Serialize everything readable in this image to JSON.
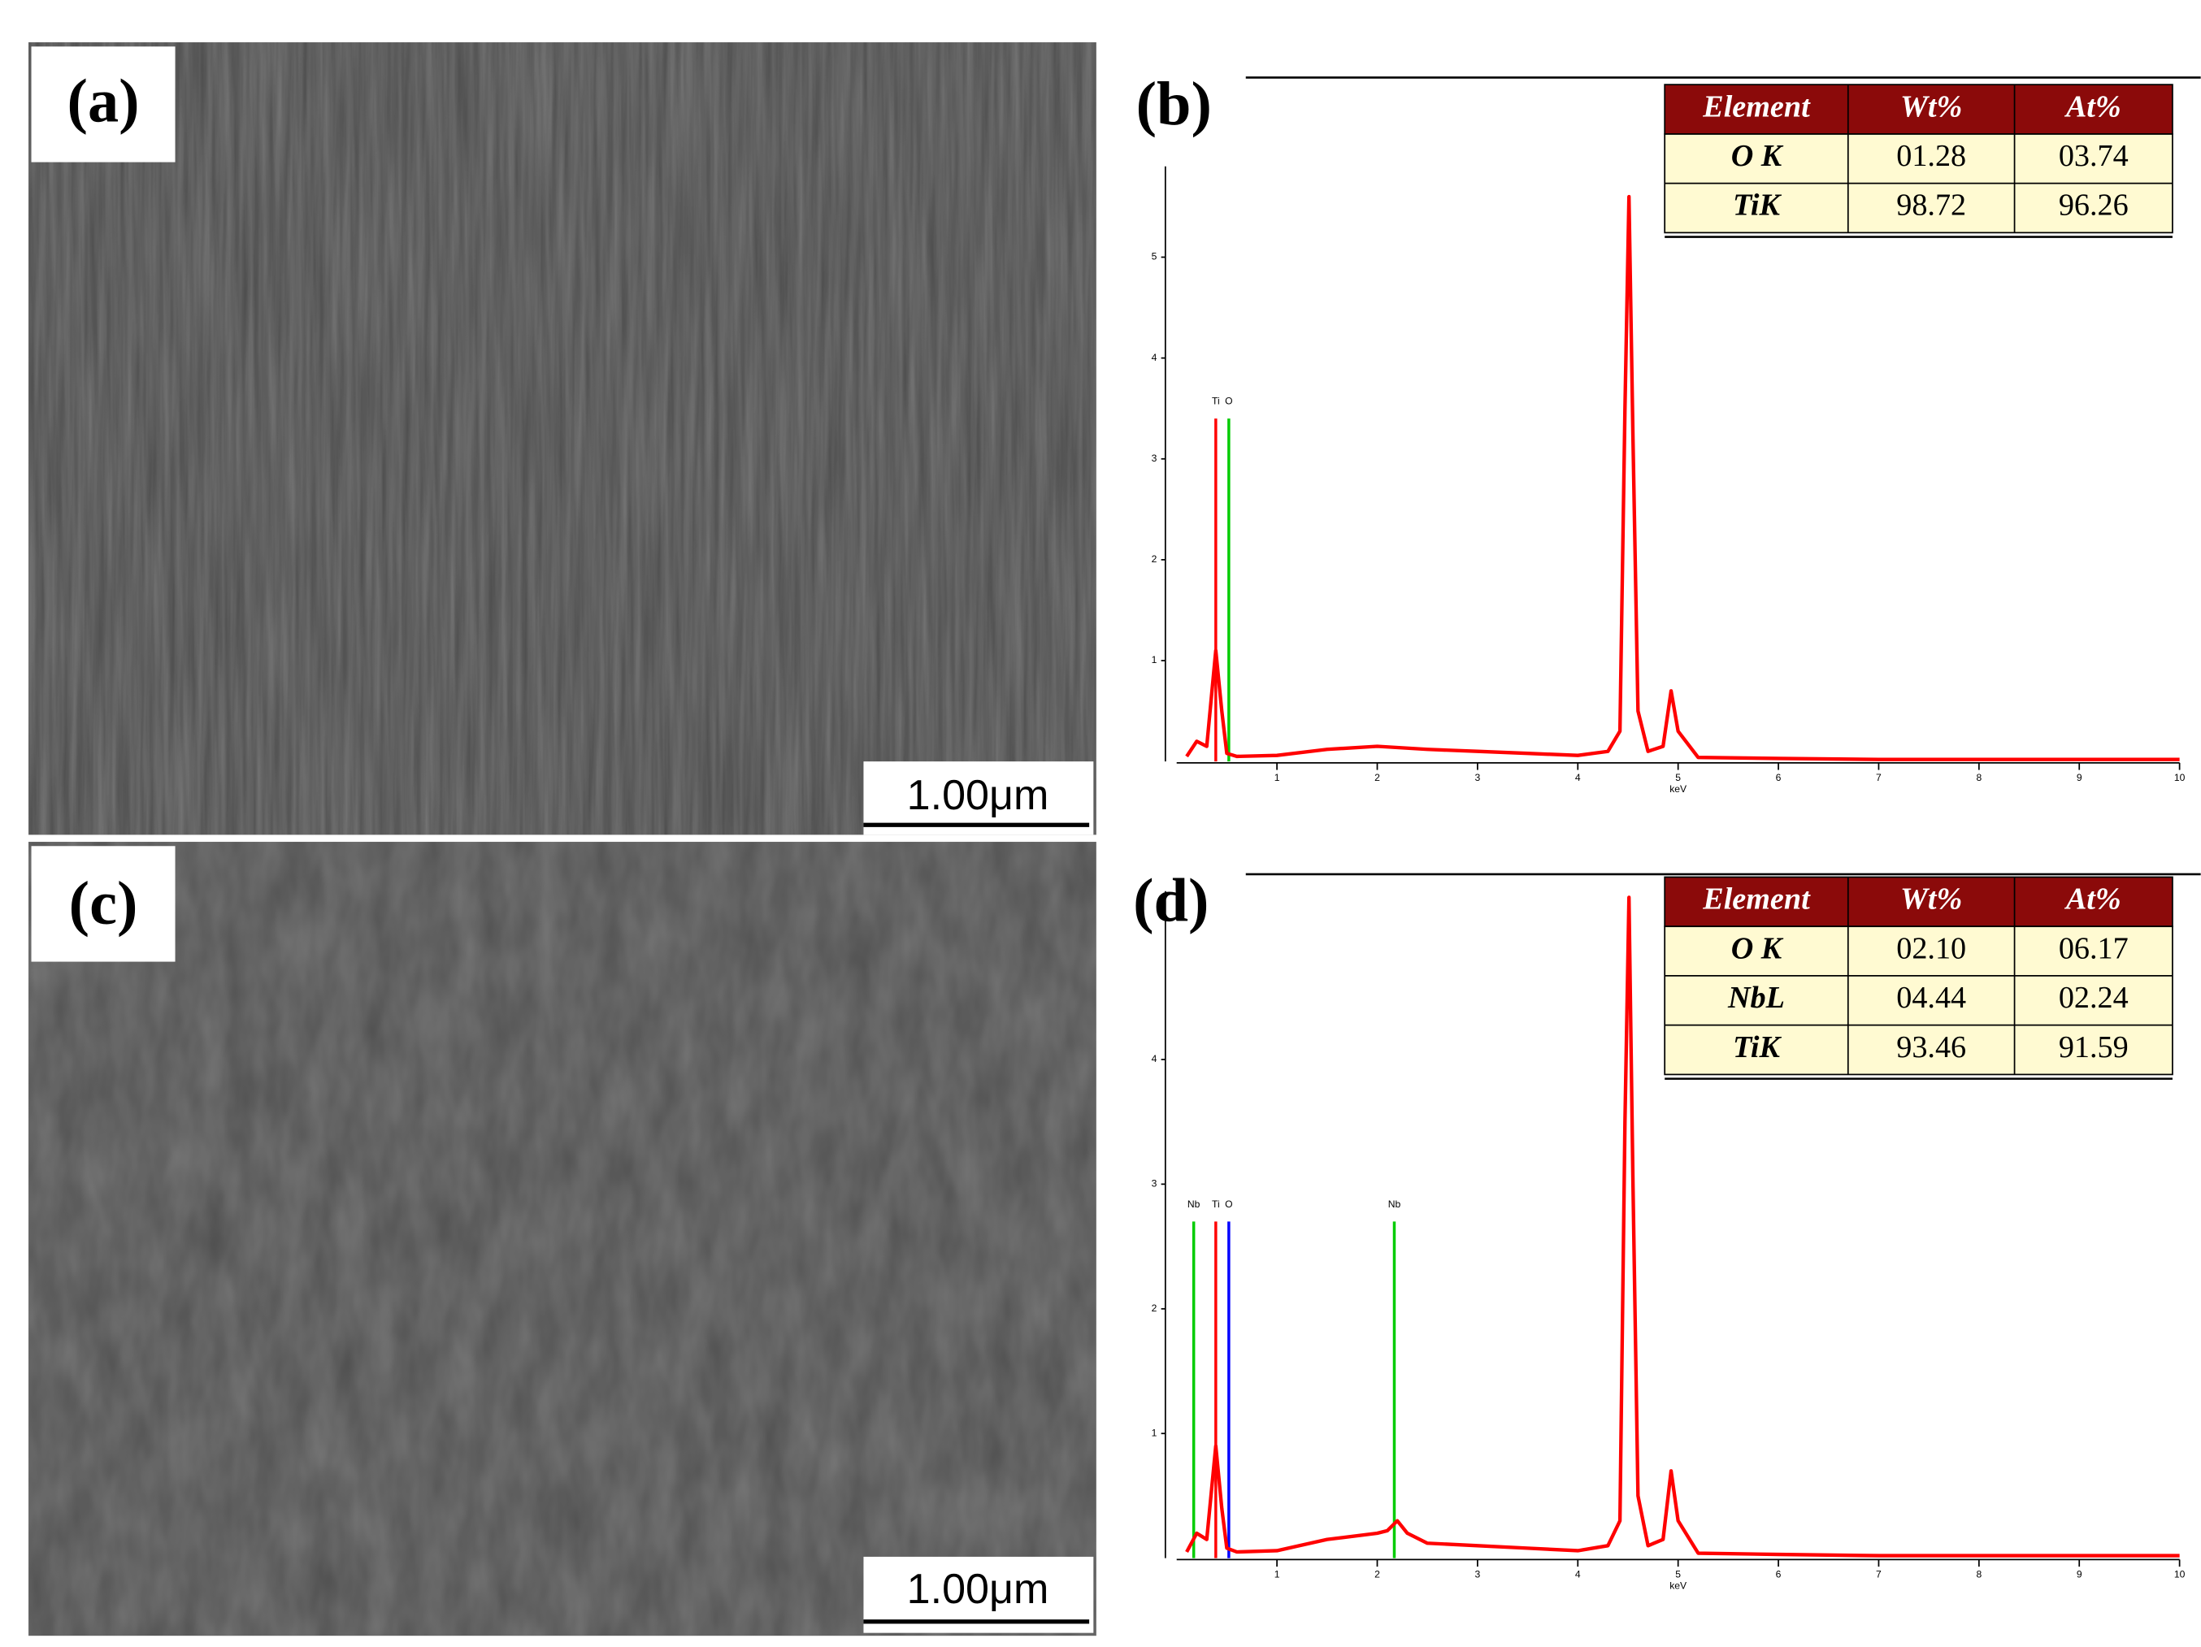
{
  "panels": [
    {
      "label": "(a)",
      "scale_bar": "1.00μm"
    },
    {
      "label": "(b)"
    },
    {
      "label": "(c)",
      "scale_bar": "1.00μm"
    },
    {
      "label": "(d)"
    }
  ],
  "tables": [
    {
      "header": [
        "Element",
        "Wt%",
        "At%"
      ],
      "rows": [
        [
          "O K",
          "01.28",
          "03.74"
        ],
        [
          "TiK",
          "98.72",
          "96.26"
        ]
      ]
    },
    {
      "header": [
        "Element",
        "Wt%",
        "At%"
      ],
      "rows": [
        [
          "O K",
          "02.10",
          "06.17"
        ],
        [
          "NbL",
          "04.44",
          "02.24"
        ],
        [
          "TiK",
          "93.46",
          "91.59"
        ]
      ]
    }
  ],
  "chart_data": [
    {
      "type": "line",
      "x_label": "keV",
      "x": [
        0.1,
        0.2,
        0.3,
        0.39,
        0.45,
        0.5,
        0.6,
        1,
        1.5,
        2,
        2.5,
        3,
        3.5,
        4,
        4.3,
        4.42,
        4.47,
        4.51,
        4.55,
        4.6,
        4.7,
        4.85,
        4.93,
        5.0,
        5.2,
        6,
        7,
        8,
        9,
        10
      ],
      "series": [
        {
          "color": "#ff0000",
          "values": [
            0.05,
            0.2,
            0.15,
            1.1,
            0.5,
            0.08,
            0.05,
            0.06,
            0.12,
            0.15,
            0.12,
            0.1,
            0.08,
            0.06,
            0.1,
            0.3,
            3.5,
            5.6,
            3.2,
            0.5,
            0.1,
            0.15,
            0.7,
            0.3,
            0.04,
            0.03,
            0.02,
            0.02,
            0.02,
            0.02
          ]
        }
      ],
      "markers": [
        {
          "label": "Ti",
          "x": 0.39,
          "height": 3.4,
          "color": "#ff0000"
        },
        {
          "label": "O",
          "x": 0.52,
          "height": 3.4,
          "color": "#00cc00"
        }
      ],
      "xlim": [
        0,
        10
      ],
      "xticks": [
        1,
        2,
        3,
        4,
        5,
        6,
        7,
        8,
        9,
        10
      ],
      "ylim": [
        0,
        5.9
      ],
      "yticks": [
        1,
        2,
        3,
        4,
        5
      ]
    },
    {
      "type": "line",
      "x_label": "keV",
      "x": [
        0.1,
        0.2,
        0.3,
        0.39,
        0.45,
        0.5,
        0.6,
        1,
        1.5,
        2,
        2.1,
        2.2,
        2.3,
        2.5,
        3,
        3.5,
        4,
        4.3,
        4.42,
        4.47,
        4.51,
        4.55,
        4.6,
        4.7,
        4.85,
        4.93,
        5.0,
        5.2,
        6,
        7,
        8,
        9,
        10
      ],
      "series": [
        {
          "color": "#ff0000",
          "values": [
            0.05,
            0.2,
            0.15,
            0.9,
            0.4,
            0.08,
            0.05,
            0.06,
            0.15,
            0.2,
            0.22,
            0.3,
            0.2,
            0.12,
            0.1,
            0.08,
            0.06,
            0.1,
            0.3,
            3.5,
            5.3,
            3.0,
            0.5,
            0.1,
            0.15,
            0.7,
            0.3,
            0.04,
            0.03,
            0.02,
            0.02,
            0.02,
            0.02
          ]
        }
      ],
      "markers": [
        {
          "label": "Nb",
          "x": 0.17,
          "height": 2.7,
          "color": "#00cc00"
        },
        {
          "label": "Ti",
          "x": 0.39,
          "height": 2.7,
          "color": "#ff0000"
        },
        {
          "label": "O",
          "x": 0.52,
          "height": 2.7,
          "color": "#0000ff"
        },
        {
          "label": "Nb",
          "x": 2.17,
          "height": 2.7,
          "color": "#00cc00"
        }
      ],
      "xlim": [
        0,
        10
      ],
      "xticks": [
        1,
        2,
        3,
        4,
        5,
        6,
        7,
        8,
        9,
        10
      ],
      "ylim": [
        0,
        5.35
      ],
      "yticks": [
        1,
        2,
        3,
        4
      ]
    }
  ]
}
